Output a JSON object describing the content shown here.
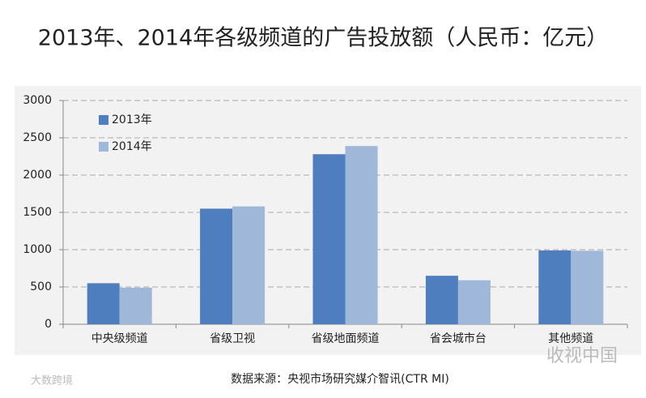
{
  "chart_data": {
    "type": "bar",
    "title": "2013年、2014年各级频道的广告投放额（人民币：亿元）",
    "categories": [
      "中央级频道",
      "省级卫视",
      "省级地面频道",
      "省会城市台",
      "其他频道"
    ],
    "series": [
      {
        "name": "2013年",
        "color": "#4f7ebe",
        "values": [
          550,
          1550,
          2280,
          650,
          990
        ]
      },
      {
        "name": "2014年",
        "color": "#9fb7d8",
        "values": [
          490,
          1580,
          2390,
          590,
          985
        ]
      }
    ],
    "ylim": [
      0,
      3000
    ],
    "yticks": [
      0,
      500,
      1000,
      1500,
      2000,
      2500,
      3000
    ],
    "grid": true,
    "legend": "top-left",
    "source": "数据来源：央视市场研究媒介智讯(CTR MI)",
    "watermarks": [
      "收视中国",
      "大数跨境"
    ]
  }
}
